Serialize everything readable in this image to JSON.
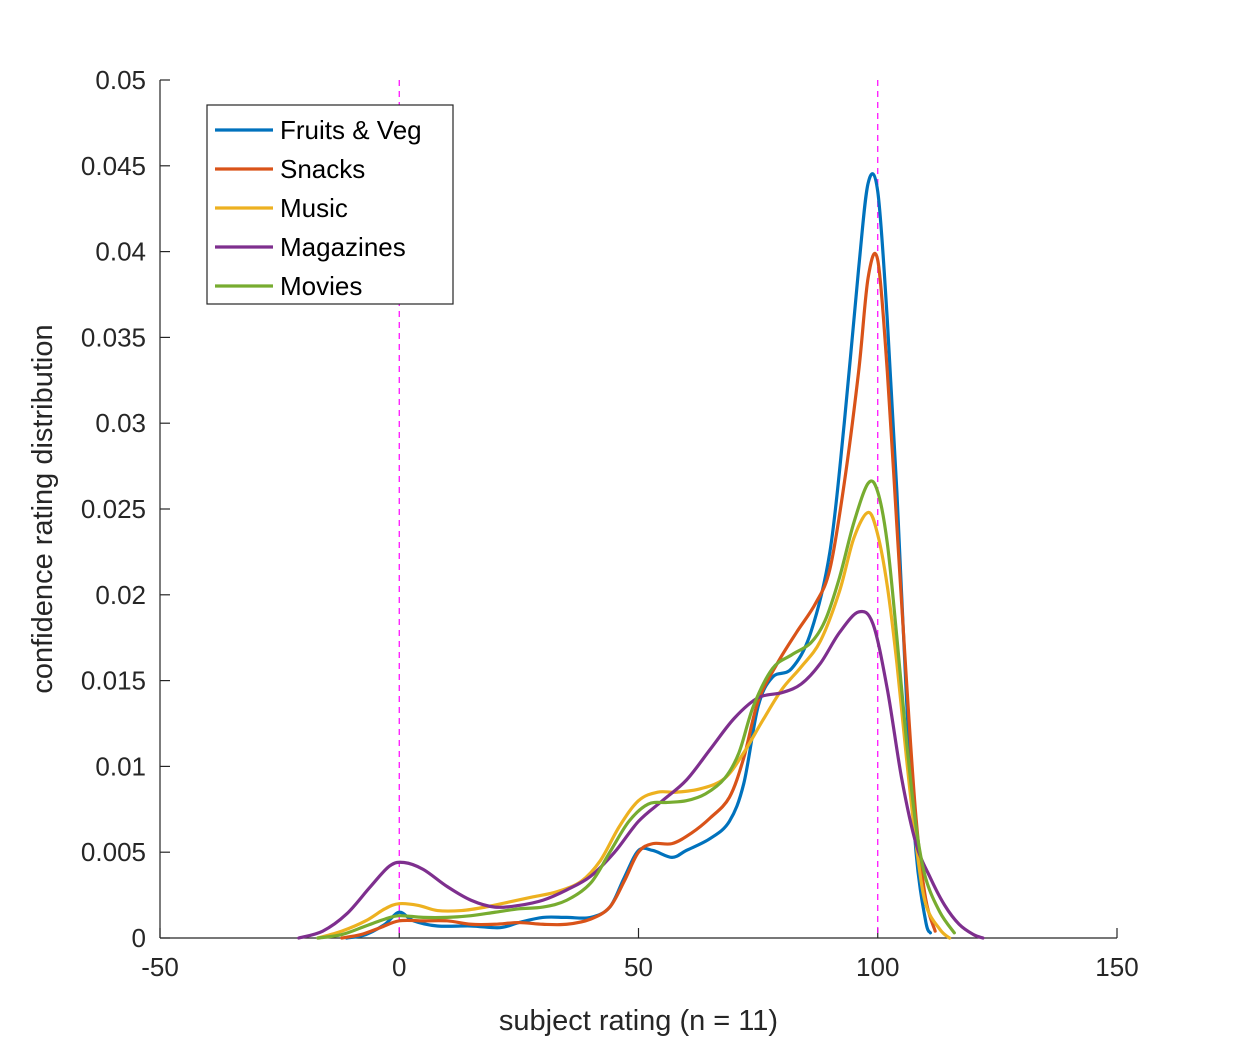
{
  "chart_data": {
    "type": "line",
    "xlabel": "subject rating (n = 11)",
    "ylabel": "confidence rating distribution",
    "xlim": [
      -50,
      150
    ],
    "ylim": [
      0,
      0.05
    ],
    "x_ticks": [
      -50,
      0,
      50,
      100,
      150
    ],
    "x_tick_labels": [
      "-50",
      "0",
      "50",
      "100",
      "150"
    ],
    "y_ticks": [
      0,
      0.005,
      0.01,
      0.015,
      0.02,
      0.025,
      0.03,
      0.035,
      0.04,
      0.045,
      0.05
    ],
    "y_tick_labels": [
      "0",
      "0.005",
      "0.01",
      "0.015",
      "0.02",
      "0.025",
      "0.03",
      "0.035",
      "0.04",
      "0.045",
      "0.05"
    ],
    "grid": false,
    "box": "off",
    "legend_position": "top-left",
    "reference_lines": [
      {
        "axis": "x",
        "value": 0,
        "style": "dashed",
        "color": "#ff00ff"
      },
      {
        "axis": "x",
        "value": 100,
        "style": "dashed",
        "color": "#ff00ff"
      }
    ],
    "series": [
      {
        "name": "Fruits & Veg",
        "color": "#0072BD",
        "points": [
          [
            -11,
            0
          ],
          [
            -7,
            0.0002
          ],
          [
            -3,
            0.0008
          ],
          [
            0,
            0.0015
          ],
          [
            3,
            0.001
          ],
          [
            8,
            0.0007
          ],
          [
            15,
            0.0007
          ],
          [
            21,
            0.0006
          ],
          [
            25,
            0.0009
          ],
          [
            30,
            0.0012
          ],
          [
            35,
            0.0012
          ],
          [
            40,
            0.0012
          ],
          [
            44,
            0.0018
          ],
          [
            47,
            0.0035
          ],
          [
            50,
            0.0051
          ],
          [
            53,
            0.0051
          ],
          [
            57,
            0.0047
          ],
          [
            60,
            0.0051
          ],
          [
            65,
            0.0058
          ],
          [
            69,
            0.0068
          ],
          [
            72,
            0.009
          ],
          [
            75,
            0.0135
          ],
          [
            78,
            0.0152
          ],
          [
            82,
            0.0157
          ],
          [
            86,
            0.0178
          ],
          [
            90,
            0.0225
          ],
          [
            93,
            0.03
          ],
          [
            96,
            0.039
          ],
          [
            98,
            0.044
          ],
          [
            100,
            0.0435
          ],
          [
            102,
            0.036
          ],
          [
            104,
            0.026
          ],
          [
            106,
            0.014
          ],
          [
            108,
            0.005
          ],
          [
            110,
            0.001
          ],
          [
            111,
            0.0003
          ]
        ]
      },
      {
        "name": "Snacks",
        "color": "#D95319",
        "points": [
          [
            -12,
            0
          ],
          [
            -8,
            0.0002
          ],
          [
            -4,
            0.0006
          ],
          [
            0,
            0.001
          ],
          [
            5,
            0.001
          ],
          [
            10,
            0.001
          ],
          [
            15,
            0.0008
          ],
          [
            20,
            0.0008
          ],
          [
            25,
            0.0009
          ],
          [
            30,
            0.0008
          ],
          [
            35,
            0.0008
          ],
          [
            40,
            0.0011
          ],
          [
            44,
            0.0018
          ],
          [
            47,
            0.0033
          ],
          [
            50,
            0.005
          ],
          [
            53,
            0.0055
          ],
          [
            57,
            0.0055
          ],
          [
            61,
            0.0061
          ],
          [
            65,
            0.007
          ],
          [
            69,
            0.0082
          ],
          [
            72,
            0.0105
          ],
          [
            75,
            0.0138
          ],
          [
            79,
            0.016
          ],
          [
            83,
            0.0178
          ],
          [
            87,
            0.0195
          ],
          [
            90,
            0.0215
          ],
          [
            93,
            0.0265
          ],
          [
            96,
            0.033
          ],
          [
            98,
            0.0385
          ],
          [
            100,
            0.0395
          ],
          [
            102,
            0.033
          ],
          [
            104,
            0.024
          ],
          [
            106,
            0.015
          ],
          [
            108,
            0.007
          ],
          [
            110,
            0.0023
          ],
          [
            112,
            0.0004
          ]
        ]
      },
      {
        "name": "Music",
        "color": "#EDB120",
        "points": [
          [
            -17,
            0
          ],
          [
            -12,
            0.0004
          ],
          [
            -7,
            0.001
          ],
          [
            -3,
            0.0017
          ],
          [
            0,
            0.002
          ],
          [
            4,
            0.0019
          ],
          [
            8,
            0.0016
          ],
          [
            13,
            0.0016
          ],
          [
            18,
            0.0018
          ],
          [
            23,
            0.0021
          ],
          [
            28,
            0.0024
          ],
          [
            33,
            0.0027
          ],
          [
            38,
            0.0033
          ],
          [
            42,
            0.0045
          ],
          [
            46,
            0.0065
          ],
          [
            50,
            0.008
          ],
          [
            54,
            0.0085
          ],
          [
            58,
            0.0085
          ],
          [
            63,
            0.0087
          ],
          [
            68,
            0.0093
          ],
          [
            72,
            0.0108
          ],
          [
            76,
            0.0127
          ],
          [
            80,
            0.0145
          ],
          [
            84,
            0.0158
          ],
          [
            88,
            0.0173
          ],
          [
            92,
            0.0202
          ],
          [
            95,
            0.0233
          ],
          [
            98,
            0.0248
          ],
          [
            100,
            0.0235
          ],
          [
            102,
            0.0205
          ],
          [
            104,
            0.016
          ],
          [
            106,
            0.0105
          ],
          [
            108,
            0.0055
          ],
          [
            110,
            0.002
          ],
          [
            113,
            0.0005
          ],
          [
            115,
            0
          ]
        ]
      },
      {
        "name": "Magazines",
        "color": "#7E2F8E",
        "points": [
          [
            -21,
            0
          ],
          [
            -16,
            0.0004
          ],
          [
            -11,
            0.0014
          ],
          [
            -6,
            0.003
          ],
          [
            -2,
            0.0042
          ],
          [
            1,
            0.0044
          ],
          [
            5,
            0.004
          ],
          [
            10,
            0.003
          ],
          [
            15,
            0.0022
          ],
          [
            20,
            0.0018
          ],
          [
            25,
            0.0019
          ],
          [
            30,
            0.0022
          ],
          [
            35,
            0.0028
          ],
          [
            40,
            0.0036
          ],
          [
            45,
            0.005
          ],
          [
            50,
            0.0068
          ],
          [
            55,
            0.008
          ],
          [
            60,
            0.0092
          ],
          [
            65,
            0.011
          ],
          [
            70,
            0.0128
          ],
          [
            75,
            0.014
          ],
          [
            80,
            0.0143
          ],
          [
            84,
            0.0148
          ],
          [
            88,
            0.016
          ],
          [
            92,
            0.0178
          ],
          [
            96,
            0.019
          ],
          [
            99,
            0.0183
          ],
          [
            102,
            0.0145
          ],
          [
            105,
            0.0093
          ],
          [
            108,
            0.0055
          ],
          [
            111,
            0.0035
          ],
          [
            114,
            0.0019
          ],
          [
            117,
            0.0008
          ],
          [
            120,
            0.0002
          ],
          [
            122,
            0
          ]
        ]
      },
      {
        "name": "Movies",
        "color": "#77AC30",
        "points": [
          [
            -17,
            0
          ],
          [
            -12,
            0.0002
          ],
          [
            -7,
            0.0007
          ],
          [
            -3,
            0.0011
          ],
          [
            0,
            0.0013
          ],
          [
            5,
            0.0012
          ],
          [
            10,
            0.0012
          ],
          [
            15,
            0.0013
          ],
          [
            20,
            0.0015
          ],
          [
            25,
            0.0017
          ],
          [
            30,
            0.0018
          ],
          [
            35,
            0.0022
          ],
          [
            40,
            0.0032
          ],
          [
            44,
            0.005
          ],
          [
            48,
            0.0068
          ],
          [
            52,
            0.0078
          ],
          [
            56,
            0.0079
          ],
          [
            60,
            0.008
          ],
          [
            64,
            0.0084
          ],
          [
            68,
            0.0093
          ],
          [
            71,
            0.0108
          ],
          [
            74,
            0.0135
          ],
          [
            78,
            0.0157
          ],
          [
            82,
            0.0165
          ],
          [
            86,
            0.0172
          ],
          [
            89,
            0.0185
          ],
          [
            92,
            0.021
          ],
          [
            95,
            0.0242
          ],
          [
            98,
            0.0265
          ],
          [
            100,
            0.026
          ],
          [
            102,
            0.023
          ],
          [
            104,
            0.0175
          ],
          [
            106,
            0.0115
          ],
          [
            108,
            0.0065
          ],
          [
            110,
            0.0035
          ],
          [
            113,
            0.0015
          ],
          [
            116,
            0.0003
          ]
        ]
      }
    ]
  }
}
